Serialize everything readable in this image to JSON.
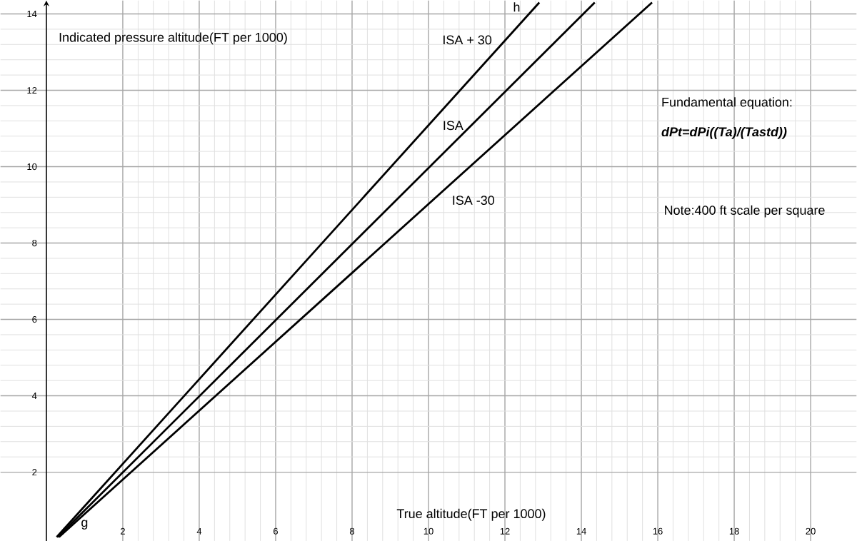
{
  "chart_data": {
    "type": "line",
    "xlabel": "True altitude(FT per 1000)",
    "ylabel": "Indicated pressure altitude(FT per 1000)",
    "series": [
      {
        "name": "ISA + 30",
        "color": "#000000",
        "x": [
          0.27,
          12.9
        ],
        "values": [
          0.3,
          14.3
        ]
      },
      {
        "name": "ISA",
        "color": "#000000",
        "x": [
          0.3,
          14.35
        ],
        "values": [
          0.3,
          14.3
        ]
      },
      {
        "name": "ISA -30",
        "color": "#000000",
        "x": [
          0.33,
          15.85
        ],
        "values": [
          0.3,
          14.3
        ]
      }
    ],
    "annotations": [
      "g",
      "h",
      "Fundamental equation:",
      "dPt=dPi((Ta)/(Tastd))",
      "Note:400 ft scale per square"
    ],
    "xlim": [
      -1.2,
      21.2
    ],
    "ylim": [
      0.2,
      14.35
    ],
    "xticks": [
      2,
      4,
      6,
      8,
      10,
      12,
      14,
      16,
      18,
      20
    ],
    "yticks": [
      2,
      4,
      6,
      8,
      10,
      12,
      14
    ],
    "grid": true,
    "marker": "none",
    "line_style": "solid",
    "legend": false
  }
}
